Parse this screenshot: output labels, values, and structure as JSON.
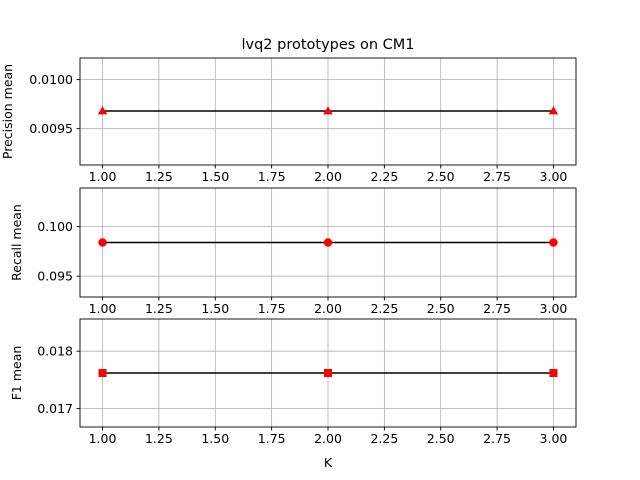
{
  "chart_data": [
    {
      "type": "line",
      "title": "lvq2 prototypes on CM1",
      "xlabel": "",
      "ylabel": "Precision mean",
      "xlim": [
        0.9,
        3.1
      ],
      "ylim": [
        0.00913,
        0.01022
      ],
      "xticks": [
        1.0,
        1.25,
        1.5,
        1.75,
        2.0,
        2.25,
        2.5,
        2.75,
        3.0
      ],
      "xtick_labels": [
        "1.00",
        "1.25",
        "1.50",
        "1.75",
        "2.00",
        "2.25",
        "2.50",
        "2.75",
        "3.00"
      ],
      "yticks": [
        0.0095,
        0.01
      ],
      "ytick_labels": [
        "0.0095",
        "0.0100"
      ],
      "grid": true,
      "series": [
        {
          "x": [
            1,
            2,
            3
          ],
          "y": [
            0.00968,
            0.00968,
            0.00968
          ],
          "line_color": "#000000",
          "marker": "triangle",
          "marker_color": "#ff0000"
        }
      ]
    },
    {
      "type": "line",
      "title": "",
      "xlabel": "",
      "ylabel": "Recall mean",
      "xlim": [
        0.9,
        3.1
      ],
      "ylim": [
        0.0929,
        0.1039
      ],
      "xticks": [
        1.0,
        1.25,
        1.5,
        1.75,
        2.0,
        2.25,
        2.5,
        2.75,
        3.0
      ],
      "xtick_labels": [
        "1.00",
        "1.25",
        "1.50",
        "1.75",
        "2.00",
        "2.25",
        "2.50",
        "2.75",
        "3.00"
      ],
      "yticks": [
        0.095,
        0.1
      ],
      "ytick_labels": [
        "0.095",
        "0.100"
      ],
      "grid": true,
      "series": [
        {
          "x": [
            1,
            2,
            3
          ],
          "y": [
            0.0984,
            0.0984,
            0.0984
          ],
          "line_color": "#000000",
          "marker": "circle",
          "marker_color": "#ff0000"
        }
      ]
    },
    {
      "type": "line",
      "title": "",
      "xlabel": "K",
      "ylabel": "F1 mean",
      "xlim": [
        0.9,
        3.1
      ],
      "ylim": [
        0.01668,
        0.01856
      ],
      "xticks": [
        1.0,
        1.25,
        1.5,
        1.75,
        2.0,
        2.25,
        2.5,
        2.75,
        3.0
      ],
      "xtick_labels": [
        "1.00",
        "1.25",
        "1.50",
        "1.75",
        "2.00",
        "2.25",
        "2.50",
        "2.75",
        "3.00"
      ],
      "yticks": [
        0.017,
        0.018
      ],
      "ytick_labels": [
        "0.017",
        "0.018"
      ],
      "grid": true,
      "series": [
        {
          "x": [
            1,
            2,
            3
          ],
          "y": [
            0.01762,
            0.01762,
            0.01762
          ],
          "line_color": "#000000",
          "marker": "square",
          "marker_color": "#ff0000"
        }
      ]
    }
  ]
}
